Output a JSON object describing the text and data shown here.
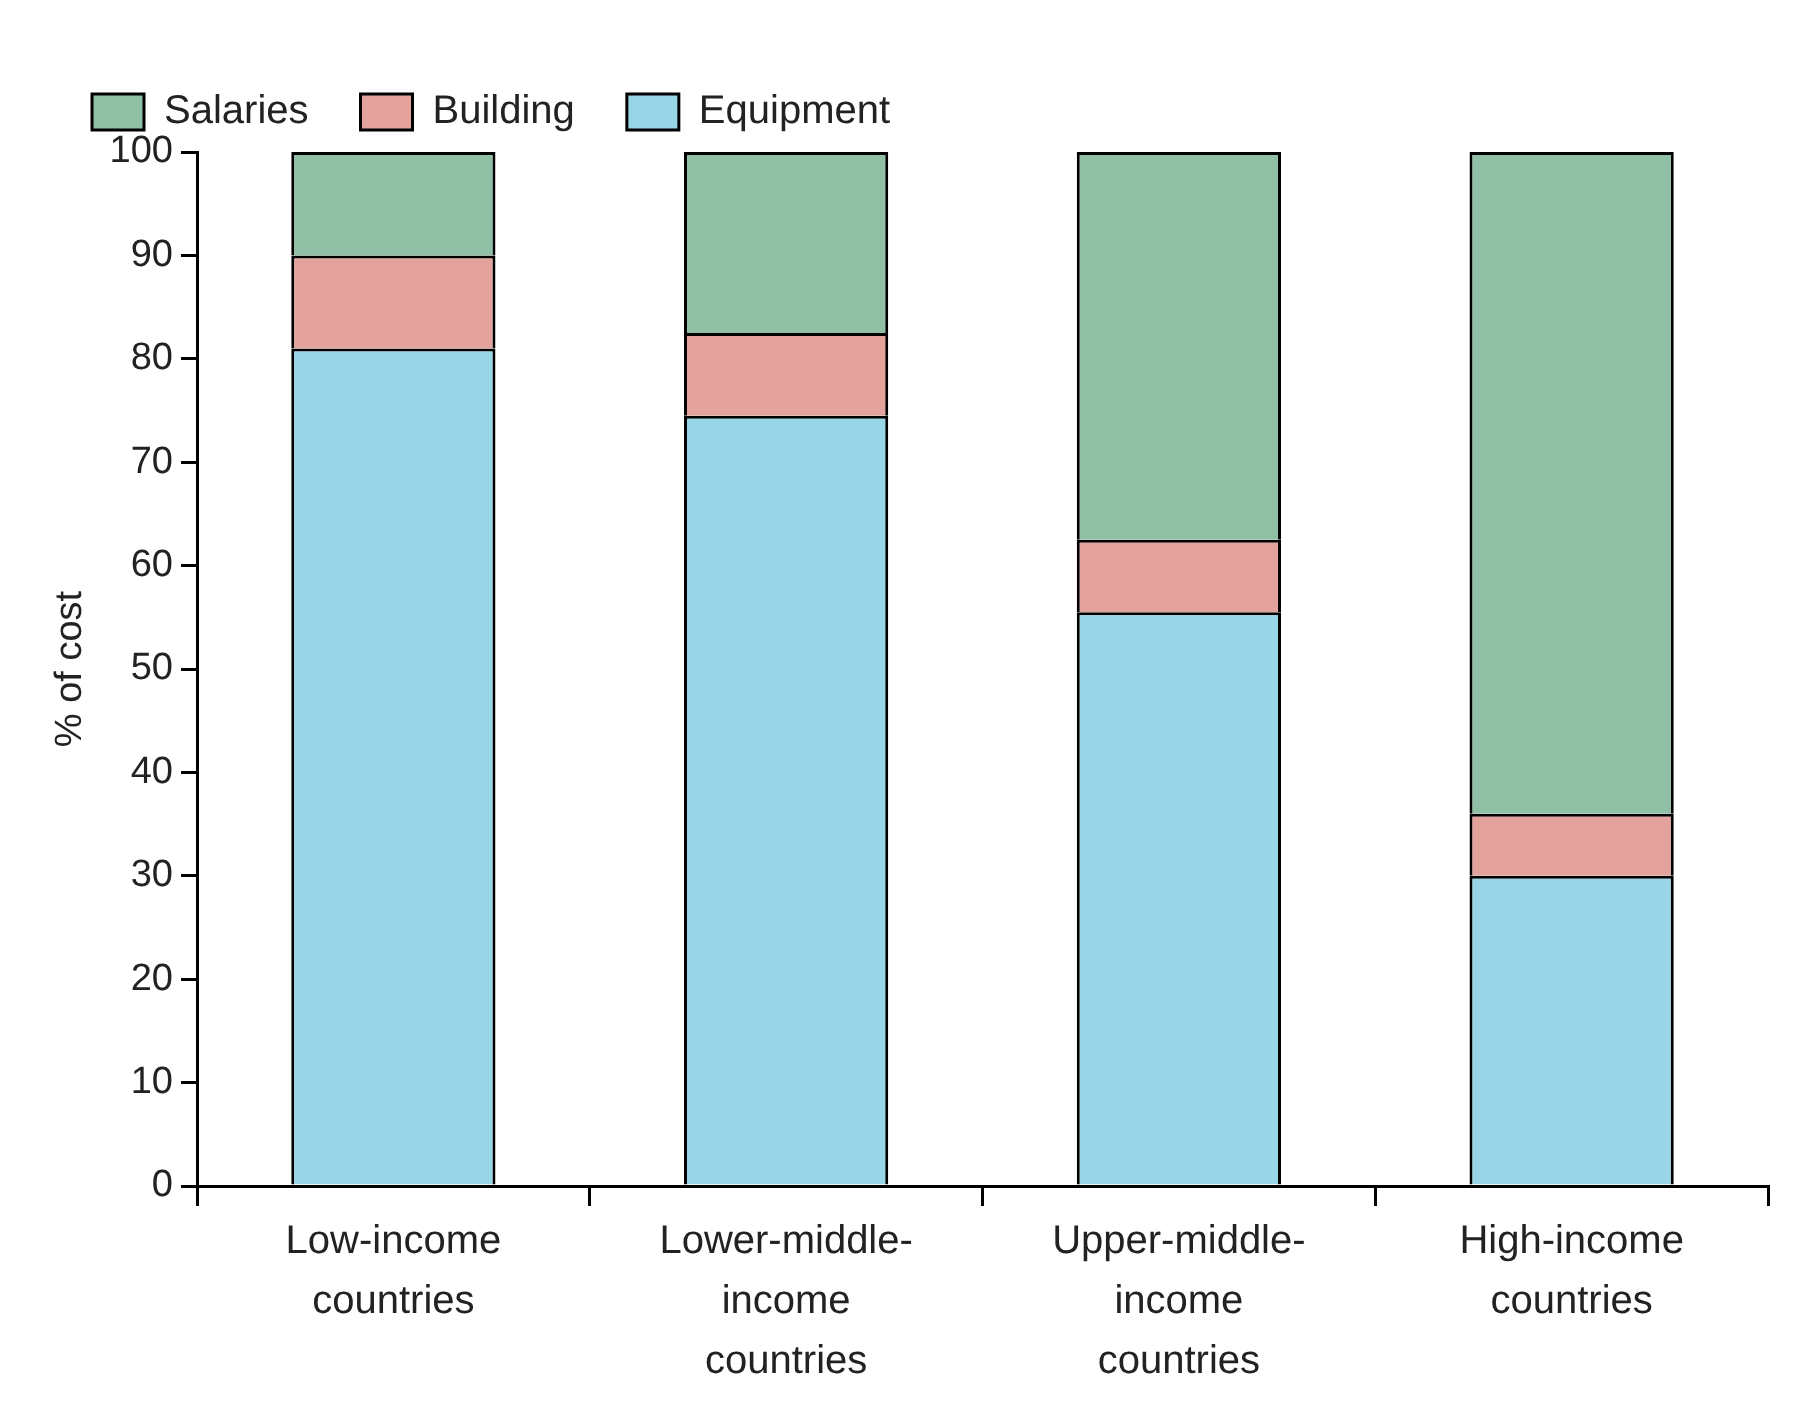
{
  "chart_data": {
    "type": "bar",
    "stacked": true,
    "ylabel": "% of cost",
    "categories": [
      "Low-income countries",
      "Lower-middle-income countries",
      "Upper-middle-income countries",
      "High-income countries"
    ],
    "series": [
      {
        "name": "Equipment",
        "color": "#98d5e6",
        "values": [
          81,
          74.5,
          55.5,
          30
        ]
      },
      {
        "name": "Building",
        "color": "#e3a39c",
        "values": [
          9,
          8,
          7,
          6
        ]
      },
      {
        "name": "Salaries",
        "color": "#8fbfa5",
        "values": [
          10,
          17.5,
          37.5,
          64
        ]
      }
    ],
    "ylim": [
      0,
      100
    ],
    "yticks": [
      0,
      10,
      20,
      30,
      40,
      50,
      60,
      70,
      80,
      90,
      100
    ],
    "grid": false,
    "legend": "top left"
  }
}
